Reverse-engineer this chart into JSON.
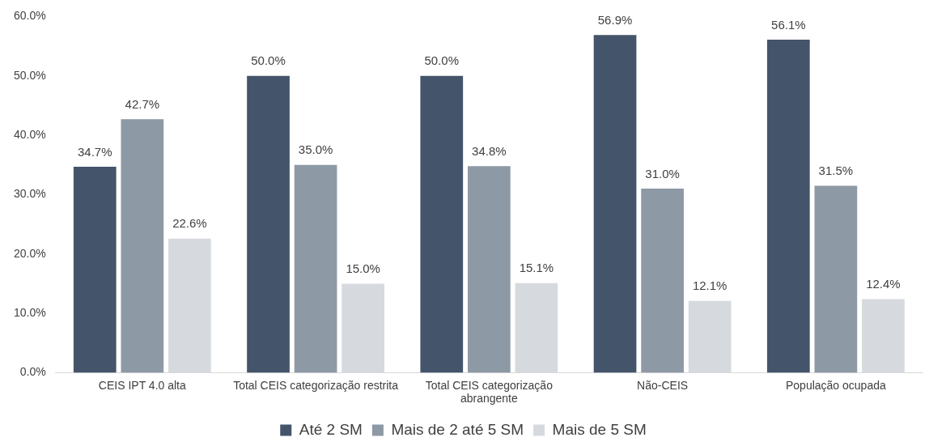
{
  "chart_data": {
    "type": "bar",
    "categories": [
      "CEIS IPT 4.0 alta",
      "Total CEIS categorização restrita",
      "Total CEIS categorização abrangente",
      "Não-CEIS",
      "População ocupada"
    ],
    "series": [
      {
        "name": "Até 2 SM",
        "color": "#44546a",
        "values": [
          34.7,
          50.0,
          50.0,
          56.9,
          56.1
        ],
        "value_labels": [
          "34.7%",
          "50.0%",
          "50.0%",
          "56.9%",
          "56.1%"
        ]
      },
      {
        "name": "Mais de 2 até 5 SM",
        "color": "#8e99a6",
        "values": [
          42.7,
          35.0,
          34.8,
          31.0,
          31.5
        ],
        "value_labels": [
          "42.7%",
          "35.0%",
          "34.8%",
          "31.0%",
          "31.5%"
        ]
      },
      {
        "name": "Mais de 5 SM",
        "color": "#d6dadf",
        "values": [
          22.6,
          15.0,
          15.1,
          12.1,
          12.4
        ],
        "value_labels": [
          "22.6%",
          "15.0%",
          "15.1%",
          "12.1%",
          "12.4%"
        ]
      }
    ],
    "ylim": [
      0,
      60
    ],
    "yticks": [
      {
        "value": 0,
        "label": "0.0%"
      },
      {
        "value": 10,
        "label": "10.0%"
      },
      {
        "value": 20,
        "label": "20.0%"
      },
      {
        "value": 30,
        "label": "30.0%"
      },
      {
        "value": 40,
        "label": "40.0%"
      },
      {
        "value": 50,
        "label": "50.0%"
      },
      {
        "value": 60,
        "label": "60.0%"
      }
    ],
    "grid": false,
    "legend": "bottom"
  }
}
